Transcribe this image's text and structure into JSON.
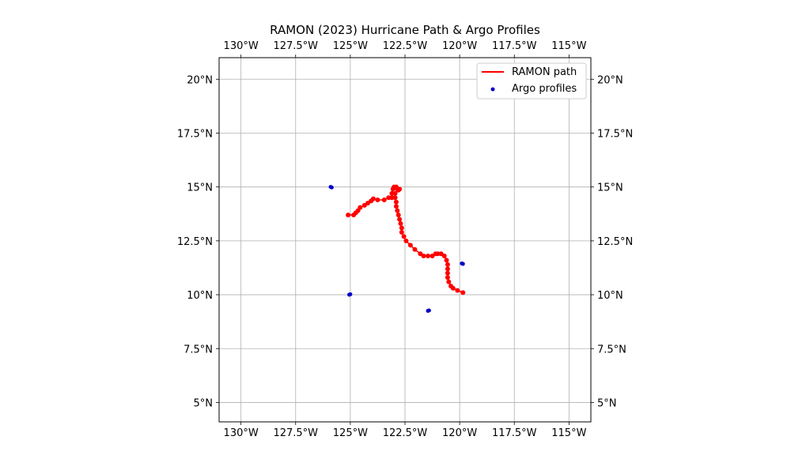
{
  "chart_data": {
    "type": "map-scatter",
    "title": "RAMON (2023) Hurricane Path & Argo Profiles",
    "xlim": [
      -131,
      -114
    ],
    "ylim": [
      4.1,
      21
    ],
    "x_ticks": [
      {
        "value": -130,
        "label": "130°W"
      },
      {
        "value": -127.5,
        "label": "127.5°W"
      },
      {
        "value": -125,
        "label": "125°W"
      },
      {
        "value": -122.5,
        "label": "122.5°W"
      },
      {
        "value": -120,
        "label": "120°W"
      },
      {
        "value": -117.5,
        "label": "117.5°W"
      },
      {
        "value": -115,
        "label": "115°W"
      }
    ],
    "y_ticks": [
      {
        "value": 5,
        "label": "5°N"
      },
      {
        "value": 7.5,
        "label": "7.5°N"
      },
      {
        "value": 10,
        "label": "10°N"
      },
      {
        "value": 12.5,
        "label": "12.5°N"
      },
      {
        "value": 15,
        "label": "15°N"
      },
      {
        "value": 17.5,
        "label": "17.5°N"
      },
      {
        "value": 20,
        "label": "20°N"
      }
    ],
    "grid": true,
    "legend_position": "top-right",
    "legend": [
      {
        "label": "RAMON path",
        "type": "line",
        "color": "#ff0000"
      },
      {
        "label": "Argo profiles",
        "type": "point",
        "color": "#0000cc"
      }
    ],
    "path": {
      "name": "RAMON path",
      "color": "#ff0000",
      "points": [
        [
          -119.85,
          10.1
        ],
        [
          -120.1,
          10.2
        ],
        [
          -120.3,
          10.3
        ],
        [
          -120.4,
          10.4
        ],
        [
          -120.5,
          10.6
        ],
        [
          -120.55,
          10.8
        ],
        [
          -120.55,
          11.0
        ],
        [
          -120.55,
          11.2
        ],
        [
          -120.55,
          11.4
        ],
        [
          -120.6,
          11.6
        ],
        [
          -120.7,
          11.8
        ],
        [
          -120.85,
          11.9
        ],
        [
          -121.0,
          11.9
        ],
        [
          -121.1,
          11.9
        ],
        [
          -121.25,
          11.8
        ],
        [
          -121.45,
          11.8
        ],
        [
          -121.65,
          11.8
        ],
        [
          -121.8,
          11.9
        ],
        [
          -122.05,
          12.1
        ],
        [
          -122.25,
          12.3
        ],
        [
          -122.45,
          12.5
        ],
        [
          -122.55,
          12.7
        ],
        [
          -122.65,
          12.9
        ],
        [
          -122.65,
          13.1
        ],
        [
          -122.7,
          13.3
        ],
        [
          -122.75,
          13.5
        ],
        [
          -122.8,
          13.7
        ],
        [
          -122.85,
          13.9
        ],
        [
          -122.9,
          14.1
        ],
        [
          -122.9,
          14.3
        ],
        [
          -122.95,
          14.5
        ],
        [
          -122.95,
          14.7
        ],
        [
          -122.85,
          14.9
        ],
        [
          -122.75,
          14.9
        ],
        [
          -122.8,
          14.85
        ],
        [
          -122.9,
          15.0
        ],
        [
          -123.0,
          15.0
        ],
        [
          -123.05,
          14.9
        ],
        [
          -123.1,
          14.7
        ],
        [
          -123.1,
          14.5
        ],
        [
          -123.25,
          14.5
        ],
        [
          -123.45,
          14.4
        ],
        [
          -123.75,
          14.4
        ],
        [
          -123.95,
          14.45
        ],
        [
          -124.05,
          14.35
        ],
        [
          -124.2,
          14.25
        ],
        [
          -124.35,
          14.15
        ],
        [
          -124.55,
          14.05
        ],
        [
          -124.65,
          13.9
        ],
        [
          -124.75,
          13.8
        ],
        [
          -124.85,
          13.7
        ],
        [
          -125.1,
          13.7
        ]
      ]
    },
    "argo_profiles": {
      "name": "Argo profiles",
      "color": "#0000cc",
      "points": [
        [
          -125.9,
          15.0
        ],
        [
          -125.85,
          14.98
        ],
        [
          -125.05,
          10.0
        ],
        [
          -125.0,
          10.02
        ],
        [
          -121.45,
          9.25
        ],
        [
          -121.4,
          9.27
        ],
        [
          -119.9,
          11.45
        ],
        [
          -119.85,
          11.43
        ]
      ]
    }
  }
}
